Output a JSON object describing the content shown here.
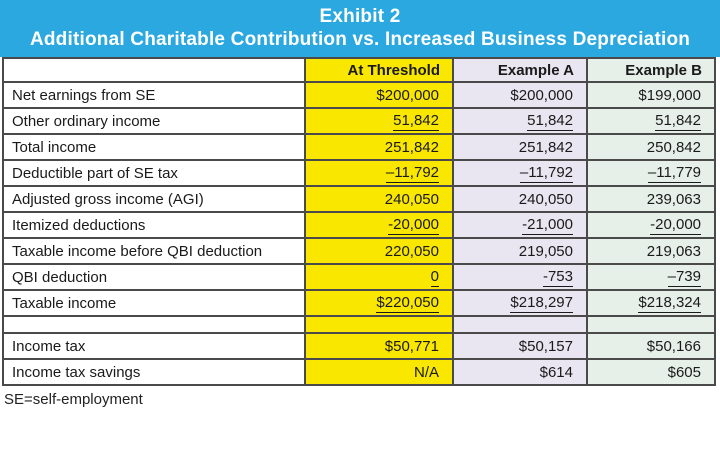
{
  "header": {
    "title": "Exhibit 2",
    "subtitle": "Additional Charitable Contribution vs. Increased Business Depreciation"
  },
  "colors": {
    "header_bg": "#2AA8DF",
    "header_text": "#FFFFFF",
    "at_threshold_bg": "#F9E700",
    "example_a_bg": "#EAE6F1",
    "example_b_bg": "#E7F0E8",
    "border": "#4A4A4A"
  },
  "table": {
    "column_headers": [
      "",
      "At Threshold",
      "Example A",
      "Example B"
    ],
    "rows": [
      {
        "label": "Net earnings from SE",
        "at_threshold": "$200,000",
        "example_a": "$200,000",
        "example_b": "$199,000",
        "underline": false,
        "spacer": false
      },
      {
        "label": "Other ordinary income",
        "at_threshold": "51,842",
        "example_a": "51,842",
        "example_b": "51,842",
        "underline": true,
        "spacer": false
      },
      {
        "label": "Total income",
        "at_threshold": "251,842",
        "example_a": "251,842",
        "example_b": "250,842",
        "underline": false,
        "spacer": false
      },
      {
        "label": "Deductible part of SE tax",
        "at_threshold": "–11,792",
        "example_a": "–11,792",
        "example_b": "–11,779",
        "underline": true,
        "spacer": false
      },
      {
        "label": "Adjusted gross income (AGI)",
        "at_threshold": "240,050",
        "example_a": "240,050",
        "example_b": "239,063",
        "underline": false,
        "spacer": false
      },
      {
        "label": "Itemized deductions",
        "at_threshold": "-20,000",
        "example_a": "-21,000",
        "example_b": "-20,000",
        "underline": true,
        "spacer": false
      },
      {
        "label": "Taxable income before QBI deduction",
        "at_threshold": "220,050",
        "example_a": "219,050",
        "example_b": "219,063",
        "underline": false,
        "spacer": false
      },
      {
        "label": "QBI deduction",
        "at_threshold": "0",
        "example_a": "-753",
        "example_b": "–739",
        "underline": true,
        "spacer": false
      },
      {
        "label": "Taxable income",
        "at_threshold": "$220,050",
        "example_a": "$218,297",
        "example_b": "$218,324",
        "underline": true,
        "spacer": false
      },
      {
        "label": "",
        "at_threshold": "",
        "example_a": "",
        "example_b": "",
        "underline": false,
        "spacer": true
      },
      {
        "label": "Income tax",
        "at_threshold": "$50,771",
        "example_a": "$50,157",
        "example_b": "$50,166",
        "underline": false,
        "spacer": false
      },
      {
        "label": "Income tax savings",
        "at_threshold": "N/A",
        "example_a": "$614",
        "example_b": "$605",
        "underline": false,
        "spacer": false
      }
    ]
  },
  "footnote": "SE=self-employment"
}
